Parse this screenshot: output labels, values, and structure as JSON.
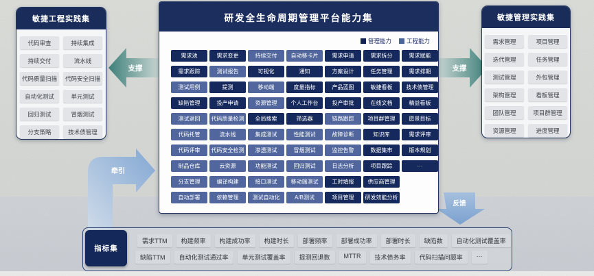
{
  "left_panel": {
    "title": "敏捷工程实践集",
    "items": [
      "代码审查",
      "持续集成",
      "持续交付",
      "流水线",
      "代码质量扫描",
      "代码安全扫描",
      "自动化测试",
      "单元测试",
      "回归测试",
      "冒烟测试",
      "分支策略",
      "技术债管理"
    ]
  },
  "right_panel": {
    "title": "敏捷管理实践集",
    "items": [
      "需求管理",
      "项目管理",
      "迭代管理",
      "任务管理",
      "测试管理",
      "外包管理",
      "架构管理",
      "看板管理",
      "团队管理",
      "项目群管理",
      "资源管理",
      "进度管理"
    ]
  },
  "center_panel": {
    "title": "研发全生命周期管理平台能力集",
    "legend": [
      {
        "label": "管理能力",
        "type": "management",
        "color": "#16295c"
      },
      {
        "label": "工程能力",
        "type": "engineering",
        "color": "#50669d"
      }
    ],
    "rows": [
      [
        {
          "label": "需求池",
          "type": "management"
        },
        {
          "label": "需求变更",
          "type": "management"
        },
        {
          "label": "持续交付",
          "type": "engineering"
        },
        {
          "label": "自动移卡片",
          "type": "engineering"
        },
        {
          "label": "需求申请",
          "type": "management"
        },
        {
          "label": "需求拆分",
          "type": "management"
        },
        {
          "label": "需求赋能",
          "type": "management"
        }
      ],
      [
        {
          "label": "需求跟踪",
          "type": "management"
        },
        {
          "label": "测试报告",
          "type": "engineering"
        },
        {
          "label": "可视化",
          "type": "management"
        },
        {
          "label": "通知",
          "type": "management"
        },
        {
          "label": "方案设计",
          "type": "management"
        },
        {
          "label": "任务管理",
          "type": "management"
        },
        {
          "label": "需求排期",
          "type": "management"
        }
      ],
      [
        {
          "label": "测试用例",
          "type": "engineering"
        },
        {
          "label": "提测",
          "type": "management"
        },
        {
          "label": "移动端",
          "type": "engineering"
        },
        {
          "label": "度量指标",
          "type": "management"
        },
        {
          "label": "产品蓝图",
          "type": "management"
        },
        {
          "label": "敏捷看板",
          "type": "management"
        },
        {
          "label": "技术债管理",
          "type": "management"
        }
      ],
      [
        {
          "label": "缺陷管理",
          "type": "management"
        },
        {
          "label": "投产申请",
          "type": "management"
        },
        {
          "label": "资源管理",
          "type": "engineering"
        },
        {
          "label": "个人工作台",
          "type": "management"
        },
        {
          "label": "投产审批",
          "type": "management"
        },
        {
          "label": "在线文档",
          "type": "management"
        },
        {
          "label": "精益看板",
          "type": "management"
        }
      ],
      [
        {
          "label": "测试退回",
          "type": "engineering"
        },
        {
          "label": "代码质量检测",
          "type": "engineering"
        },
        {
          "label": "全局搜索",
          "type": "management"
        },
        {
          "label": "筛选器",
          "type": "management"
        },
        {
          "label": "链路跟踪",
          "type": "engineering"
        },
        {
          "label": "项目群管理",
          "type": "management"
        },
        {
          "label": "愿景目标",
          "type": "management"
        }
      ],
      [
        {
          "label": "代码托管",
          "type": "engineering"
        },
        {
          "label": "流水线",
          "type": "engineering"
        },
        {
          "label": "集成测试",
          "type": "engineering"
        },
        {
          "label": "性能测试",
          "type": "engineering"
        },
        {
          "label": "故障诊断",
          "type": "engineering"
        },
        {
          "label": "知识库",
          "type": "management"
        },
        {
          "label": "需求评审",
          "type": "management"
        }
      ],
      [
        {
          "label": "代码评审",
          "type": "engineering"
        },
        {
          "label": "代码安全检测",
          "type": "engineering"
        },
        {
          "label": "渗透测试",
          "type": "engineering"
        },
        {
          "label": "冒烟测试",
          "type": "engineering"
        },
        {
          "label": "监控告警",
          "type": "engineering"
        },
        {
          "label": "数据集市",
          "type": "management"
        },
        {
          "label": "版本规划",
          "type": "management"
        }
      ],
      [
        {
          "label": "制品仓库",
          "type": "engineering"
        },
        {
          "label": "云资源",
          "type": "engineering"
        },
        {
          "label": "功能测试",
          "type": "engineering"
        },
        {
          "label": "回归测试",
          "type": "engineering"
        },
        {
          "label": "日志分析",
          "type": "engineering"
        },
        {
          "label": "项目跟踪",
          "type": "management"
        },
        {
          "label": "···",
          "type": "management"
        }
      ],
      [
        {
          "label": "分支管理",
          "type": "engineering"
        },
        {
          "label": "编译构建",
          "type": "engineering"
        },
        {
          "label": "接口测试",
          "type": "engineering"
        },
        {
          "label": "移动端测试",
          "type": "engineering"
        },
        {
          "label": "工时填报",
          "type": "management"
        },
        {
          "label": "供应商管理",
          "type": "management"
        }
      ],
      [
        {
          "label": "自动部署",
          "type": "engineering"
        },
        {
          "label": "依赖管理",
          "type": "engineering"
        },
        {
          "label": "测试自动化",
          "type": "engineering"
        },
        {
          "label": "A/B测试",
          "type": "engineering"
        },
        {
          "label": "项目管理",
          "type": "management"
        },
        {
          "label": "研发效能分析",
          "type": "management"
        }
      ]
    ]
  },
  "arrows": {
    "support_left": "支撑",
    "support_right": "支撑",
    "pull": "牵引",
    "feedback": "反馈",
    "teal_color": "#3e807a",
    "blue_color": "#82a7d3"
  },
  "metrics_panel": {
    "title": "指标集",
    "rows": [
      [
        "需求TTM",
        "构建频率",
        "构建成功率",
        "构建时长",
        "部署频率",
        "部署成功率",
        "部署时长",
        "缺陷数",
        "自动化测试覆盖率"
      ],
      [
        "缺陷TTM",
        "自动化测试通过率",
        "单元测试覆盖率",
        "提测回退数",
        "MTTR",
        "技术债务率",
        "代码扫描问题率",
        "···"
      ]
    ]
  }
}
